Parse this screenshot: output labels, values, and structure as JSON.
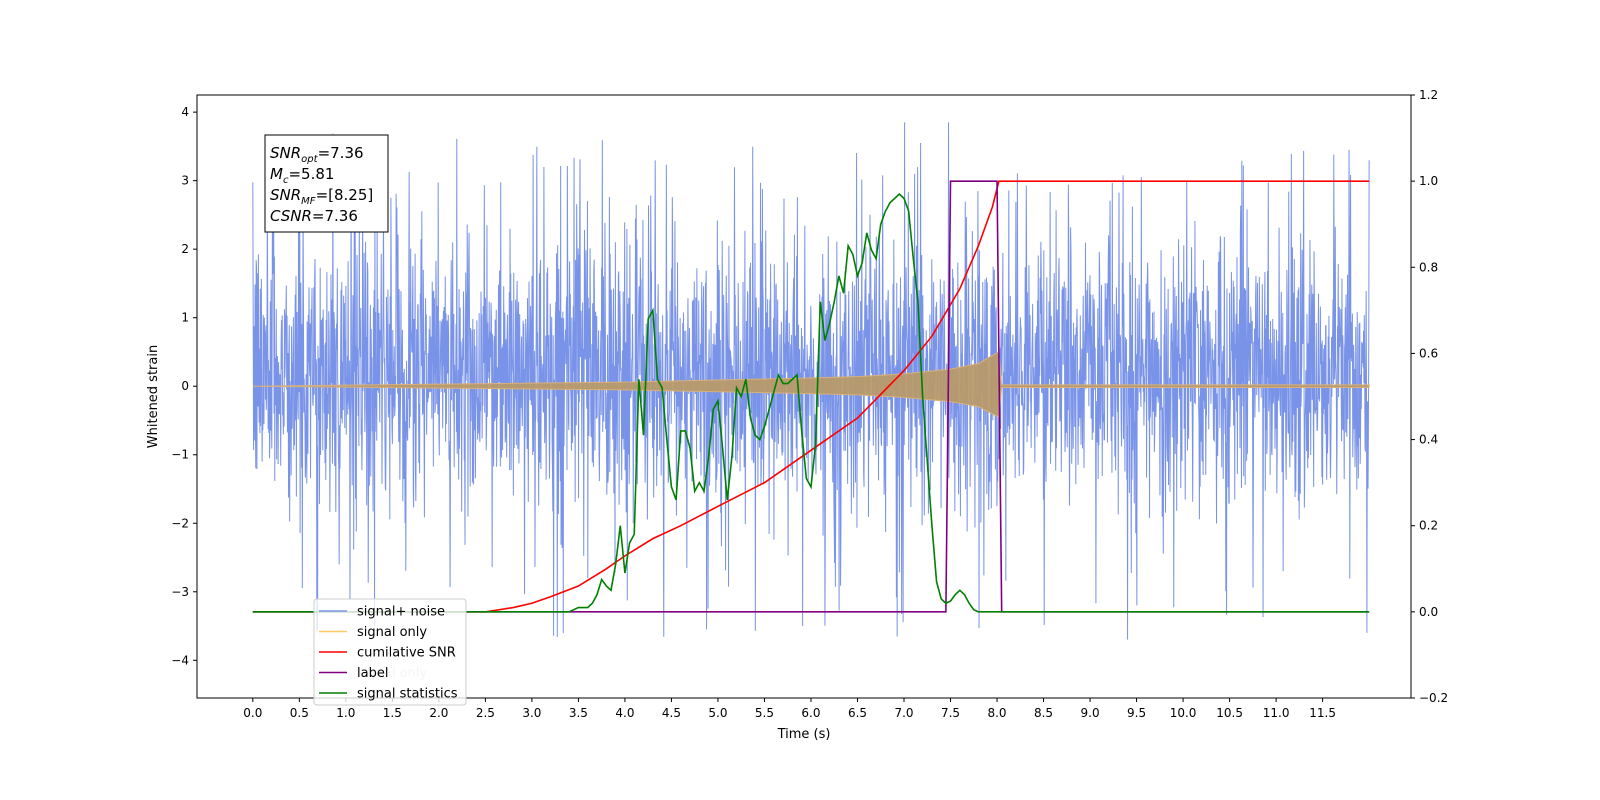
{
  "chart_data": {
    "type": "line",
    "xlabel": "Time (s)",
    "ylabel": "Whitened strain",
    "xlim": [
      -0.6,
      12.45
    ],
    "ylim": [
      -4.55,
      4.25
    ],
    "y2lim": [
      -0.2,
      1.2
    ],
    "x_ticks": [
      0.0,
      0.5,
      1.0,
      1.5,
      2.0,
      2.5,
      3.0,
      3.5,
      4.0,
      4.5,
      5.0,
      5.5,
      6.0,
      6.5,
      7.0,
      7.5,
      8.0,
      8.5,
      9.0,
      9.5,
      10.0,
      10.5,
      11.0,
      11.5
    ],
    "x_tick_labels": [
      "0.0",
      "0.5",
      "1.0",
      "1.5",
      "2.0",
      "2.5",
      "3.0",
      "3.5",
      "4.0",
      "4.5",
      "5.0",
      "5.5",
      "6.0",
      "6.5",
      "7.0",
      "7.5",
      "8.0",
      "8.5",
      "9.0",
      "9.5",
      "10.0",
      "10.5",
      "11.0",
      "11.5"
    ],
    "y_ticks": [
      4,
      3,
      2,
      1,
      0,
      -1,
      -2,
      -3,
      -4
    ],
    "y_tick_labels": [
      "4",
      "3",
      "2",
      "1",
      "0",
      "−1",
      "−2",
      "−3",
      "−4"
    ],
    "y2_ticks": [
      1.2,
      1.0,
      0.8,
      0.6,
      0.4,
      0.2,
      0.0,
      -0.2
    ],
    "y2_tick_labels": [
      "1.2",
      "1.0",
      "0.8",
      "0.6",
      "0.4",
      "0.2",
      "0.0",
      "−0.2"
    ],
    "grid": false,
    "legend_position": "bottom-left",
    "legend": [
      {
        "label": "signal+ noise",
        "color": "#7b95e8"
      },
      {
        "label": "signal only",
        "color": "#ffc966"
      },
      {
        "label": "cumilative SNR",
        "color": "#ff0000"
      },
      {
        "label": "label",
        "color": "#800080"
      },
      {
        "label": "signal statistics",
        "color": "#008000"
      }
    ],
    "hidden_legend_text": "signal only",
    "annotation": {
      "lines": [
        {
          "base": "SNR",
          "sub": "opt",
          "rest": "=7.36"
        },
        {
          "base": "M",
          "sub": "c",
          "rest": "=5.81"
        },
        {
          "base": "SNR",
          "sub": "MF",
          "rest": "=[8.25]"
        },
        {
          "base": "CSNR",
          "sub": "",
          "rest": "=7.36"
        }
      ]
    },
    "series": [
      {
        "name": "signal+ noise",
        "axis": "left",
        "color": "#6a87e6",
        "x_range": [
          0.0,
          12.0
        ],
        "envelope": {
          "typical_low": -2.2,
          "typical_high": 2.6,
          "max": 3.85,
          "min": -4.1
        }
      },
      {
        "name": "signal only",
        "axis": "left",
        "color": "#b89a6a",
        "x_range": [
          0.0,
          12.0
        ],
        "envelope_abs": {
          "x": [
            0.0,
            2.0,
            4.0,
            5.0,
            6.0,
            6.5,
            7.0,
            7.5,
            7.8,
            7.95,
            8.02,
            8.05,
            12.0
          ],
          "y": [
            0.0,
            0.03,
            0.06,
            0.09,
            0.12,
            0.14,
            0.18,
            0.25,
            0.33,
            0.45,
            0.5,
            0.02,
            0.02
          ]
        }
      },
      {
        "name": "cumilative SNR",
        "axis": "right",
        "color": "#ff0000",
        "x": [
          0.0,
          2.5,
          2.8,
          3.0,
          3.2,
          3.5,
          3.8,
          4.0,
          4.3,
          4.6,
          5.0,
          5.5,
          6.0,
          6.5,
          7.0,
          7.3,
          7.6,
          7.8,
          7.95,
          8.02,
          12.0
        ],
        "values": [
          0.0,
          0.0,
          0.01,
          0.02,
          0.035,
          0.06,
          0.1,
          0.13,
          0.17,
          0.2,
          0.245,
          0.3,
          0.375,
          0.45,
          0.56,
          0.64,
          0.75,
          0.85,
          0.94,
          1.0,
          1.0
        ]
      },
      {
        "name": "label",
        "axis": "right",
        "color": "#800080",
        "x": [
          0.0,
          7.45,
          7.5,
          8.0,
          8.05,
          12.0
        ],
        "values": [
          0.0,
          0.0,
          1.0,
          1.0,
          0.0,
          0.0
        ]
      },
      {
        "name": "signal statistics",
        "axis": "right",
        "color": "#008000",
        "x": [
          0.0,
          3.4,
          3.5,
          3.6,
          3.65,
          3.7,
          3.75,
          3.8,
          3.85,
          3.9,
          3.95,
          4.0,
          4.05,
          4.1,
          4.15,
          4.2,
          4.25,
          4.3,
          4.35,
          4.4,
          4.45,
          4.5,
          4.55,
          4.6,
          4.65,
          4.7,
          4.75,
          4.8,
          4.85,
          4.9,
          4.95,
          5.0,
          5.05,
          5.1,
          5.15,
          5.2,
          5.25,
          5.3,
          5.35,
          5.4,
          5.45,
          5.5,
          5.55,
          5.6,
          5.65,
          5.7,
          5.75,
          5.8,
          5.85,
          5.9,
          5.95,
          6.0,
          6.05,
          6.1,
          6.15,
          6.2,
          6.25,
          6.3,
          6.35,
          6.4,
          6.45,
          6.5,
          6.55,
          6.6,
          6.65,
          6.7,
          6.75,
          6.8,
          6.85,
          6.9,
          6.95,
          7.0,
          7.05,
          7.1,
          7.15,
          7.2,
          7.25,
          7.3,
          7.35,
          7.4,
          7.45,
          7.5,
          7.55,
          7.6,
          7.65,
          7.7,
          7.75,
          7.8,
          7.85,
          7.9,
          7.95,
          8.0,
          8.05,
          8.1,
          8.15,
          8.2,
          8.25,
          8.3,
          8.35,
          8.4,
          8.45,
          8.5,
          8.55,
          8.6,
          8.7,
          8.8,
          9.0,
          12.0
        ],
        "values": [
          0.0,
          0.0,
          0.01,
          0.01,
          0.02,
          0.04,
          0.075,
          0.06,
          0.05,
          0.11,
          0.2,
          0.09,
          0.16,
          0.18,
          0.54,
          0.41,
          0.68,
          0.7,
          0.54,
          0.52,
          0.4,
          0.29,
          0.26,
          0.42,
          0.42,
          0.38,
          0.28,
          0.3,
          0.28,
          0.36,
          0.47,
          0.49,
          0.38,
          0.26,
          0.36,
          0.52,
          0.5,
          0.54,
          0.45,
          0.41,
          0.4,
          0.43,
          0.47,
          0.51,
          0.55,
          0.53,
          0.53,
          0.54,
          0.55,
          0.42,
          0.31,
          0.29,
          0.39,
          0.72,
          0.63,
          0.67,
          0.72,
          0.78,
          0.74,
          0.85,
          0.83,
          0.78,
          0.81,
          0.88,
          0.84,
          0.82,
          0.9,
          0.93,
          0.95,
          0.96,
          0.97,
          0.96,
          0.93,
          0.82,
          0.72,
          0.5,
          0.35,
          0.2,
          0.07,
          0.03,
          0.02,
          0.025,
          0.04,
          0.05,
          0.04,
          0.02,
          0.005,
          0.0,
          0.0,
          0.0,
          0.0,
          0.0,
          0.0,
          0.0,
          0.0,
          0.0,
          0.0,
          0.0,
          0.0,
          0.0,
          0.0,
          0.0,
          0.0,
          0.0,
          0.0,
          0.0,
          0.0,
          0.0
        ]
      }
    ]
  }
}
